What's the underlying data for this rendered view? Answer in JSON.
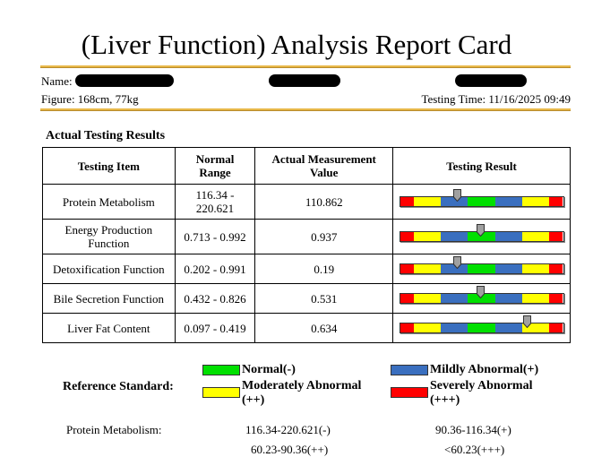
{
  "title": "(Liver Function) Analysis Report Card",
  "header": {
    "name_label": "Name:",
    "figure": "Figure: 168cm, 77kg",
    "testing_time": "Testing Time: 11/16/2025 09:49"
  },
  "section_title": "Actual Testing Results",
  "table": {
    "headers": [
      "Testing Item",
      "Normal Range",
      "Actual Measurement Value",
      "Testing Result"
    ],
    "rows": [
      {
        "item": "Protein Metabolism",
        "range": "116.34 - 220.621",
        "value": "110.862",
        "marker_fraction": 0.35
      },
      {
        "item": "Energy Production Function",
        "range": "0.713 - 0.992",
        "value": "0.937",
        "marker_fraction": 0.49
      },
      {
        "item": "Detoxification Function",
        "range": "0.202 - 0.991",
        "value": "0.19",
        "marker_fraction": 0.35
      },
      {
        "item": "Bile Secretion Function",
        "range": "0.432 - 0.826",
        "value": "0.531",
        "marker_fraction": 0.49
      },
      {
        "item": "Liver Fat Content",
        "range": "0.097 - 0.419",
        "value": "0.634",
        "marker_fraction": 0.78
      }
    ]
  },
  "bar_segments": [
    "#ff0000",
    "#ffff00",
    "#3a6fbf",
    "#00e000",
    "#3a6fbf",
    "#ffff00",
    "#ff0000"
  ],
  "legend": {
    "normal": "Normal(-)",
    "mild": "Mildly Abnormal(+)",
    "moderate": "Moderately Abnormal (++)",
    "severe": "Severely Abnormal (+++)",
    "colors": {
      "normal": "#00e000",
      "mild": "#3a6fbf",
      "moderate": "#ffff00",
      "severe": "#ff0000"
    }
  },
  "reference": {
    "title": "Reference Standard:",
    "item": "Protein Metabolism:",
    "normal": "116.34-220.621(-)",
    "mild": "90.36-116.34(+)",
    "moderate": "60.23-90.36(++)",
    "severe": "<60.23(+++)"
  }
}
